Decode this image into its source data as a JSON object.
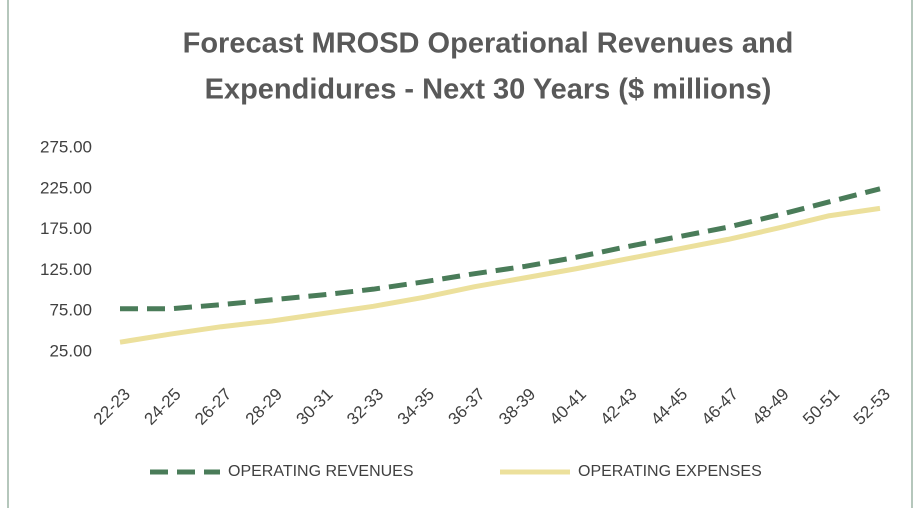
{
  "chart_data": {
    "type": "line",
    "title": "Forecast MROSD Operational Revenues and Expendidures - Next 30 Years ($ millions)",
    "title_lines": [
      "Forecast MROSD Operational Revenues and",
      "Expendidures - Next 30 Years ($ millions)"
    ],
    "categories": [
      "22-23",
      "24-25",
      "26-27",
      "28-29",
      "30-31",
      "32-33",
      "34-35",
      "36-37",
      "38-39",
      "40-41",
      "42-43",
      "44-45",
      "46-47",
      "48-49",
      "50-51",
      "52-53"
    ],
    "series": [
      {
        "name": "OPERATING REVENUES",
        "color": "#4a7c59",
        "dashed": true,
        "values": [
          78,
          78,
          83,
          89,
          95,
          102,
          111,
          121,
          130,
          141,
          154,
          166,
          178,
          193,
          209,
          225
        ]
      },
      {
        "name": "OPERATING EXPENSES",
        "color": "#ece09c",
        "dashed": false,
        "values": [
          37,
          47,
          56,
          63,
          72,
          81,
          92,
          105,
          116,
          127,
          139,
          151,
          163,
          177,
          192,
          201
        ]
      }
    ],
    "ylim": [
      25,
      275
    ],
    "yticks": [
      {
        "value": 25,
        "label": "25.00"
      },
      {
        "value": 75,
        "label": "75.00"
      },
      {
        "value": 125,
        "label": "125.00"
      },
      {
        "value": 175,
        "label": "175.00"
      },
      {
        "value": 225,
        "label": "225.00"
      },
      {
        "value": 275,
        "label": "275.00"
      }
    ],
    "legend": "bottom"
  }
}
